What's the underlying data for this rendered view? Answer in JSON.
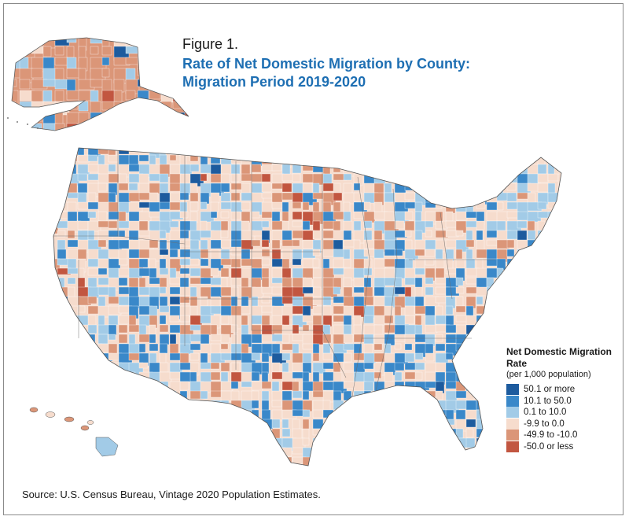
{
  "figure": {
    "label": "Figure 1.",
    "title": "Rate of Net Domestic Migration by County: Migration Period 2019-2020"
  },
  "legend": {
    "title": "Net Domestic Migration Rate",
    "subtitle": "(per 1,000 population)",
    "items": [
      {
        "label": "50.1 or more",
        "color": "#1d5b9e"
      },
      {
        "label": "10.1 to 50.0",
        "color": "#3a88c9"
      },
      {
        "label": "0.1 to 10.0",
        "color": "#a2cbe7"
      },
      {
        "label": "-9.9 to 0.0",
        "color": "#f6dccd"
      },
      {
        "label": "-49.9 to -10.0",
        "color": "#db9678"
      },
      {
        "label": "-50.0 or less",
        "color": "#c25640"
      }
    ]
  },
  "source": "Source: U.S. Census Bureau, Vintage 2020 Population Estimates."
}
